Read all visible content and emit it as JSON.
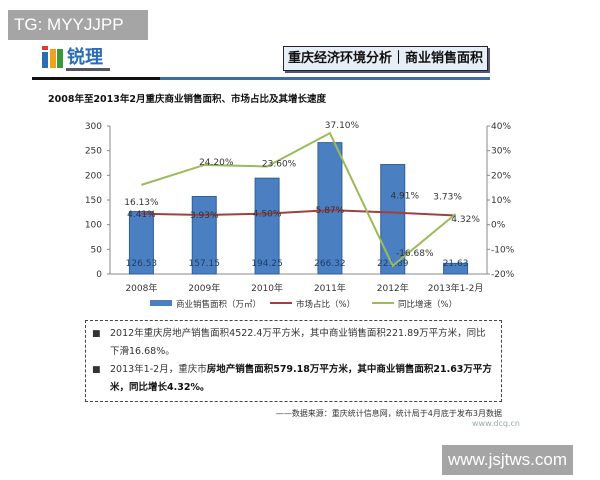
{
  "watermarks": {
    "top_left": "TG: MYYJJPP",
    "bottom_right": "www.jsjtws.com",
    "dcq": "www.dcq.cn"
  },
  "header": {
    "logo_text": "锐理",
    "title": "重庆经济环境分析｜商业销售面积"
  },
  "chart_data": {
    "type": "bar",
    "title": "2008年至2013年2月重庆商业销售面积、市场占比及其增长速度",
    "categories": [
      "2008年",
      "2009年",
      "2010年",
      "2011年",
      "2012年",
      "2013年1-2月"
    ],
    "series": [
      {
        "name": "商业销售面积（万㎡）",
        "type": "bar",
        "axis": "left",
        "color": "#4a7fc1",
        "values": [
          126.53,
          157.15,
          194.25,
          266.32,
          221.89,
          21.63
        ],
        "labels": [
          "126.53",
          "157.15",
          "194.25",
          "266.32",
          "221.89",
          "21.63"
        ]
      },
      {
        "name": "市场占比（%）",
        "type": "line",
        "axis": "right",
        "color": "#a04040",
        "values": [
          4.41,
          3.93,
          4.5,
          5.87,
          4.91,
          3.73
        ],
        "labels": [
          "4.41%",
          "3.93%",
          "4.50%",
          "5.87%",
          "4.91%",
          "3.73%"
        ]
      },
      {
        "name": "同比增速（%）",
        "type": "line",
        "axis": "right",
        "color": "#9bbb59",
        "values": [
          16.13,
          24.2,
          23.6,
          37.1,
          -16.68,
          4.32
        ],
        "labels": [
          "16.13%",
          "24.20%",
          "23.60%",
          "37.10%",
          "-16.68%",
          "4.32%"
        ]
      }
    ],
    "y_left": {
      "range": [
        0,
        300
      ],
      "ticks": [
        "0",
        "50",
        "100",
        "150",
        "200",
        "250",
        "300"
      ]
    },
    "y_right": {
      "range": [
        -20,
        40
      ],
      "ticks": [
        "-20%",
        "-10%",
        "0%",
        "10%",
        "20%",
        "30%",
        "40%"
      ]
    },
    "grid": false,
    "legend": "bottom"
  },
  "notes": [
    {
      "text": "2012年重庆房地产销售面积4522.4万平方米，其中商业销售面积221.89万平方米，同比下滑16.68%。",
      "bold": ""
    },
    {
      "text": "2013年1-2月，重庆市",
      "bold": "房地产销售面积579.18万平方米，其中商业销售面积21.63万平方米，同比增长4.32%。"
    }
  ],
  "source": "——数据来源：重庆统计信息网，统计局于4月底于发布3月数据"
}
